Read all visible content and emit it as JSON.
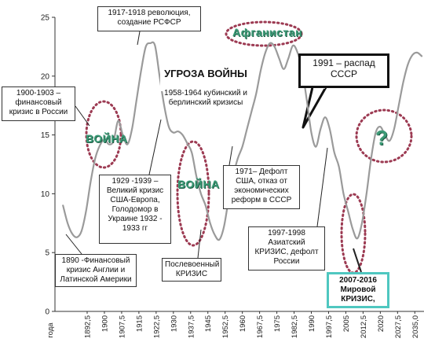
{
  "chart_data": {
    "type": "line",
    "xlabel": "года",
    "ylabel": "",
    "xlim": [
      1878.5,
      2039
    ],
    "ylim": [
      0,
      25
    ],
    "x_ticks": [
      1892.5,
      1900,
      1907.5,
      1915,
      1922.5,
      1930,
      1937.5,
      1945,
      1952.5,
      1960,
      1967.5,
      1975,
      1982.5,
      1990,
      1997.5,
      2005,
      2012.5,
      2020,
      2027.5,
      2035
    ],
    "x_tick_labels": [
      "1892,5",
      "1900",
      "1907,5",
      "1915",
      "1922,5",
      "1930",
      "1937,5",
      "1945",
      "1952,5",
      "1960",
      "1967,5",
      "1975",
      "1982,5",
      "1990",
      "1997,5",
      "2005",
      "2012,5",
      "2020",
      "2027,5",
      "2035,0"
    ],
    "y_ticks": [
      0,
      5,
      10,
      15,
      20,
      25
    ],
    "grid": false,
    "series": [
      {
        "x": [
          1882,
          1884,
          1886,
          1888,
          1890,
          1892,
          1894,
          1896,
          1898,
          1900,
          1902,
          1904,
          1906,
          1908,
          1910,
          1912,
          1914,
          1916,
          1918,
          1920,
          1922,
          1924,
          1926,
          1928,
          1930,
          1932,
          1934,
          1936,
          1938,
          1940,
          1942,
          1944,
          1946,
          1948,
          1950,
          1952,
          1954,
          1956,
          1958,
          1960,
          1962,
          1964,
          1966,
          1968,
          1970,
          1972,
          1974,
          1976,
          1978,
          1980,
          1982,
          1984,
          1986,
          1988,
          1990,
          1992,
          1994,
          1996,
          1998,
          2000,
          2002,
          2004,
          2006,
          2008,
          2010,
          2012,
          2014,
          2016,
          2018,
          2020,
          2022,
          2024,
          2026,
          2028,
          2030,
          2032,
          2034,
          2036,
          2038
        ],
        "y": [
          9,
          7.5,
          6.6,
          6.3,
          6.8,
          8.5,
          11,
          13,
          14.1,
          14.6,
          14.2,
          14.5,
          16.2,
          15,
          14.2,
          15.5,
          18,
          20.5,
          22.5,
          22.8,
          22.6,
          20,
          17.5,
          15.7,
          15.2,
          15.3,
          15,
          14.3,
          13.5,
          11.5,
          10,
          9,
          7.5,
          6.5,
          6.1,
          7.2,
          9.5,
          11.5,
          13,
          14,
          15.5,
          17,
          18.5,
          20.5,
          22,
          22.8,
          22.5,
          21.5,
          20.6,
          21.5,
          22.6,
          22,
          20.5,
          18,
          15.2,
          14,
          15.5,
          16.5,
          15.5,
          13.5,
          12.3,
          10,
          8.5,
          7,
          6.2,
          7.5,
          10,
          13,
          15.2,
          15.7,
          15,
          14.5,
          15.5,
          17.5,
          19.5,
          21,
          21.8,
          22,
          21.7
        ]
      }
    ]
  },
  "annotations": {
    "c1917": "1917-1918 революция,\nсоздание РСФСР",
    "afgan": "Афганистан",
    "threat_title": "УГРОЗА ВОЙНЫ",
    "threat_body": "1958-1964 кубинский и\nберлинский  кризисы",
    "c1991": "1991 – распад\nСССР",
    "c1900": "1900-1903 –\nфинансовый\nкризис в России",
    "war1": "ВОЙНА",
    "war2": "ВОЙНА",
    "question": "?",
    "c1929": "1929 -1939 –\nВеликий кризис\nСША-Европа,\nГолодомор в\nУкраине 1932 -\n1933 гг",
    "c1971": "1971– Дефолт\nСША, отказ от\nэкономических\nреформ в СССР",
    "c1997": "1997-1998\nАзиатский\nКРИЗИС, дефолт\nРоссии",
    "c1890": "1890 -Финансовый\nкризис Англии и\nЛатинской Америки",
    "postwar": "Послевоенный\nКРИЗИС",
    "c2007": "2007-2016\nМировой\nКРИЗИС,"
  },
  "colors": {
    "line": "#9a9a9a",
    "ellipse": "#9c3a52",
    "war_text": "#3b9a76",
    "teal_border": "#4fc7c0"
  }
}
